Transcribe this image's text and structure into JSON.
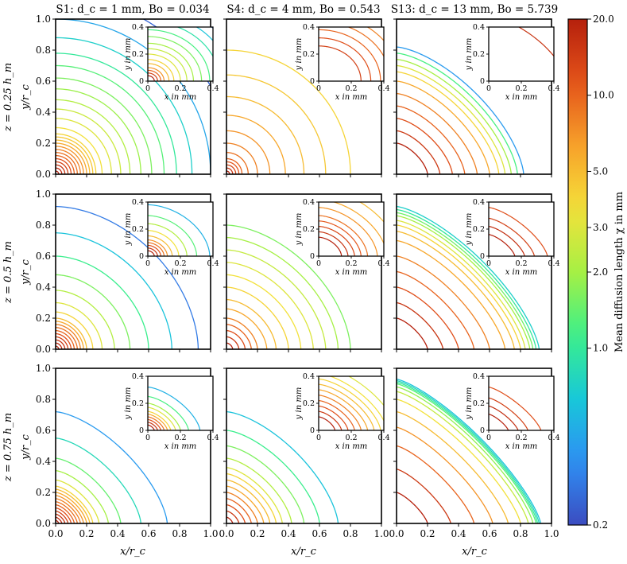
{
  "chart_data": {
    "type": "contour",
    "colorbar": {
      "label": "Mean diffusion length χ in mm",
      "scale": "log",
      "range": [
        0.2,
        20.0
      ],
      "ticks": [
        "20.0",
        "10.0",
        "5.0",
        "3.0",
        "2.0",
        "1.0",
        "0.2"
      ],
      "tick_values": [
        20.0,
        10.0,
        5.0,
        3.0,
        2.0,
        1.0,
        0.2
      ],
      "colors": [
        "#3b4cc0",
        "#2f8ff5",
        "#18c8d8",
        "#3bf08a",
        "#a6f044",
        "#f4e13a",
        "#f7a12a",
        "#e4531a",
        "#b5200c"
      ]
    },
    "columns": [
      {
        "title": "S1: d_c = 1 mm, Bo = 0.034",
        "case": "S1",
        "d_c_mm": 1,
        "Bo": 0.034
      },
      {
        "title": "S4: d_c = 4 mm, Bo = 0.543",
        "case": "S4",
        "d_c_mm": 4,
        "Bo": 0.543
      },
      {
        "title": "S13: d_c = 13 mm, Bo = 5.739",
        "case": "S13",
        "d_c_mm": 13,
        "Bo": 5.739
      }
    ],
    "rows": [
      {
        "label": "z = 0.25 h_m",
        "z_fraction": 0.25
      },
      {
        "label": "z = 0.5 h_m",
        "z_fraction": 0.5
      },
      {
        "label": "z = 0.75 h_m",
        "z_fraction": 0.75
      }
    ],
    "main_axes": {
      "xlabel": "x/r_c",
      "ylabel": "y/r_c",
      "xlim": [
        0.0,
        1.0
      ],
      "ylim": [
        0.0,
        1.0
      ],
      "xticks": [
        "0.0",
        "0.2",
        "0.4",
        "0.6",
        "0.8",
        "1.0"
      ],
      "yticks": [
        "0.0",
        "0.2",
        "0.4",
        "0.6",
        "0.8",
        "1.0"
      ]
    },
    "inset_axes": {
      "xlabel": "x in mm",
      "ylabel": "y in mm",
      "xlim": [
        0.0,
        0.4
      ],
      "ylim": [
        0.0,
        0.4
      ],
      "xticks": [
        "0",
        "0.2",
        "0.4"
      ],
      "yticks": [
        "0",
        "0.2",
        "0.4"
      ]
    },
    "panels": [
      {
        "row": 0,
        "col": 0,
        "contour_radii": [
          0.02,
          0.04,
          0.06,
          0.08,
          0.1,
          0.12,
          0.14,
          0.16,
          0.18,
          0.2,
          0.22,
          0.24,
          0.26,
          0.3,
          0.36,
          0.42,
          0.48,
          0.55,
          0.62,
          0.7,
          0.78,
          0.88,
          1.0,
          1.15
        ],
        "contour_levels": [
          20,
          18,
          16,
          14,
          12,
          10,
          9,
          8,
          7,
          6,
          5,
          4.5,
          4,
          3.5,
          3,
          2.6,
          2.2,
          1.9,
          1.6,
          1.3,
          1.0,
          0.7,
          0.45,
          0.25
        ],
        "exponent": 2.0,
        "inset_radii": [
          0.04,
          0.06,
          0.08,
          0.1,
          0.13,
          0.16,
          0.2,
          0.24,
          0.28,
          0.33,
          0.38,
          0.44,
          0.5,
          0.56
        ],
        "inset_levels": [
          20,
          14,
          10,
          7,
          5,
          4,
          3,
          2.5,
          2,
          1.6,
          1.2,
          0.9,
          0.6,
          0.3
        ]
      },
      {
        "row": 0,
        "col": 1,
        "contour_radii": [
          0.02,
          0.04,
          0.06,
          0.08,
          0.1,
          0.14,
          0.2,
          0.28,
          0.38,
          0.5,
          0.64,
          0.8
        ],
        "contour_levels": [
          20,
          16,
          13,
          11,
          10,
          9,
          8,
          7,
          6,
          5,
          4.5,
          4
        ],
        "exponent": 2.0,
        "inset_radii": [
          0.26,
          0.32,
          0.38,
          0.44,
          0.5
        ],
        "inset_levels": [
          14,
          12,
          10,
          9,
          8
        ]
      },
      {
        "row": 0,
        "col": 2,
        "contour_radii": [
          0.2,
          0.28,
          0.36,
          0.44,
          0.52,
          0.6,
          0.66,
          0.7,
          0.74,
          0.78,
          0.82
        ],
        "contour_levels": [
          20,
          15,
          12,
          10,
          8,
          6,
          4,
          3,
          2,
          1.2,
          0.4
        ],
        "exponent": 1.5,
        "inset_radii": [
          0.48
        ],
        "inset_levels": [
          16
        ]
      },
      {
        "row": 1,
        "col": 0,
        "contour_radii": [
          0.02,
          0.04,
          0.06,
          0.08,
          0.1,
          0.12,
          0.14,
          0.16,
          0.18,
          0.2,
          0.24,
          0.3,
          0.38,
          0.48,
          0.6,
          0.75,
          0.92
        ],
        "contour_levels": [
          20,
          18,
          16,
          14,
          12,
          10,
          9,
          8,
          6,
          5,
          4,
          3,
          2.2,
          1.6,
          1.1,
          0.6,
          0.3
        ],
        "exponent": 1.8,
        "inset_radii": [
          0.04,
          0.06,
          0.08,
          0.1,
          0.12,
          0.15,
          0.19,
          0.24,
          0.3,
          0.38
        ],
        "inset_levels": [
          20,
          16,
          12,
          9,
          7,
          5,
          3.5,
          2.2,
          1.3,
          0.5
        ]
      },
      {
        "row": 1,
        "col": 1,
        "contour_radii": [
          0.04,
          0.08,
          0.12,
          0.16,
          0.2,
          0.26,
          0.32,
          0.4,
          0.48,
          0.56,
          0.64,
          0.72,
          0.8
        ],
        "contour_levels": [
          20,
          15,
          12,
          10,
          8,
          6,
          5,
          4,
          3.5,
          3,
          2.5,
          2,
          1.6
        ],
        "exponent": 1.7,
        "inset_radii": [
          0.14,
          0.18,
          0.22,
          0.26,
          0.3,
          0.36,
          0.42,
          0.5
        ],
        "inset_levels": [
          20,
          16,
          13,
          11,
          9,
          7,
          6,
          5
        ]
      },
      {
        "row": 1,
        "col": 2,
        "contour_radii": [
          0.2,
          0.3,
          0.4,
          0.5,
          0.6,
          0.7,
          0.76,
          0.8,
          0.83,
          0.86,
          0.88,
          0.9,
          0.92
        ],
        "contour_levels": [
          20,
          16,
          12,
          10,
          8,
          6,
          5,
          4,
          3,
          2,
          1.5,
          1.0,
          0.7
        ],
        "exponent": 1.4,
        "inset_radii": [
          0.16,
          0.22,
          0.28,
          0.36
        ],
        "inset_levels": [
          20,
          17,
          14,
          12
        ]
      },
      {
        "row": 2,
        "col": 0,
        "contour_radii": [
          0.02,
          0.04,
          0.06,
          0.08,
          0.1,
          0.12,
          0.14,
          0.16,
          0.18,
          0.2,
          0.22,
          0.24,
          0.28,
          0.34,
          0.42,
          0.55,
          0.72
        ],
        "contour_levels": [
          20,
          18,
          16,
          14,
          12,
          10,
          9,
          8,
          7,
          6,
          5,
          4,
          3,
          2,
          1.4,
          0.8,
          0.4
        ],
        "exponent": 1.5,
        "inset_radii": [
          0.04,
          0.06,
          0.08,
          0.1,
          0.12,
          0.14,
          0.17,
          0.2,
          0.25,
          0.32
        ],
        "inset_levels": [
          20,
          16,
          12,
          9,
          6,
          4,
          3,
          2,
          1.2,
          0.5
        ]
      },
      {
        "row": 2,
        "col": 1,
        "contour_radii": [
          0.04,
          0.08,
          0.12,
          0.16,
          0.2,
          0.24,
          0.28,
          0.32,
          0.36,
          0.42,
          0.5,
          0.6,
          0.72
        ],
        "contour_levels": [
          20,
          15,
          12,
          10,
          8,
          6,
          5,
          4,
          3,
          2.2,
          1.6,
          1.1,
          0.6
        ],
        "exponent": 1.5,
        "inset_radii": [
          0.1,
          0.14,
          0.18,
          0.22,
          0.26,
          0.3,
          0.34,
          0.38,
          0.42,
          0.48
        ],
        "inset_levels": [
          20,
          15,
          12,
          10,
          8,
          6,
          5,
          4,
          3.5,
          3
        ]
      },
      {
        "row": 2,
        "col": 2,
        "contour_radii": [
          0.2,
          0.35,
          0.5,
          0.62,
          0.72,
          0.8,
          0.85,
          0.88,
          0.9,
          0.91,
          0.92,
          0.93
        ],
        "contour_levels": [
          20,
          15,
          10,
          7,
          5,
          3.5,
          2.5,
          1.8,
          1.3,
          1.0,
          0.8,
          0.6
        ],
        "exponent": 1.3,
        "inset_radii": [
          0.12,
          0.18,
          0.24,
          0.32
        ],
        "inset_levels": [
          20,
          17,
          14,
          12
        ]
      }
    ]
  }
}
